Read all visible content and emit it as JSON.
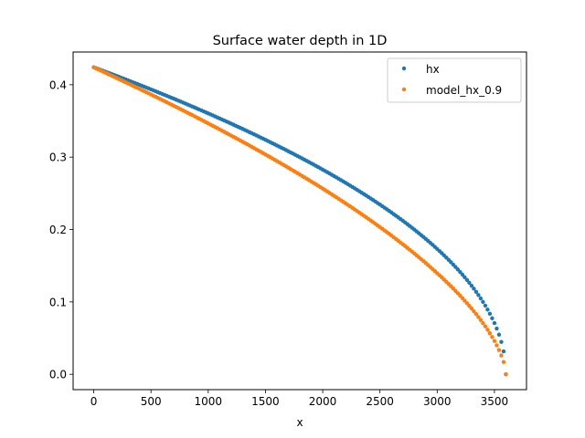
{
  "chart_data": {
    "type": "scatter",
    "title": "Surface water depth in 1D",
    "xlabel": "x",
    "ylabel": "",
    "xlim": [
      -180,
      3780
    ],
    "ylim": [
      -0.0212,
      0.4452
    ],
    "xticks": [
      0,
      500,
      1000,
      1500,
      2000,
      2500,
      3000,
      3500
    ],
    "yticks": [
      0.0,
      0.1,
      0.2,
      0.3,
      0.4
    ],
    "xtick_labels": [
      "0",
      "500",
      "1000",
      "1500",
      "2000",
      "2500",
      "3000",
      "3500"
    ],
    "ytick_labels": [
      "0.0",
      "0.1",
      "0.2",
      "0.3",
      "0.4"
    ],
    "grid": false,
    "legend_position": "top-right",
    "x_max": 3600,
    "point_count": 181,
    "series": [
      {
        "name": "hx",
        "color": "#1f77b4",
        "h0": 0.4241,
        "exponent": 0.5
      },
      {
        "name": "model_hx_0.9",
        "color": "#ff7f0e",
        "h0": 0.4241,
        "exponent": 0.62
      }
    ]
  }
}
